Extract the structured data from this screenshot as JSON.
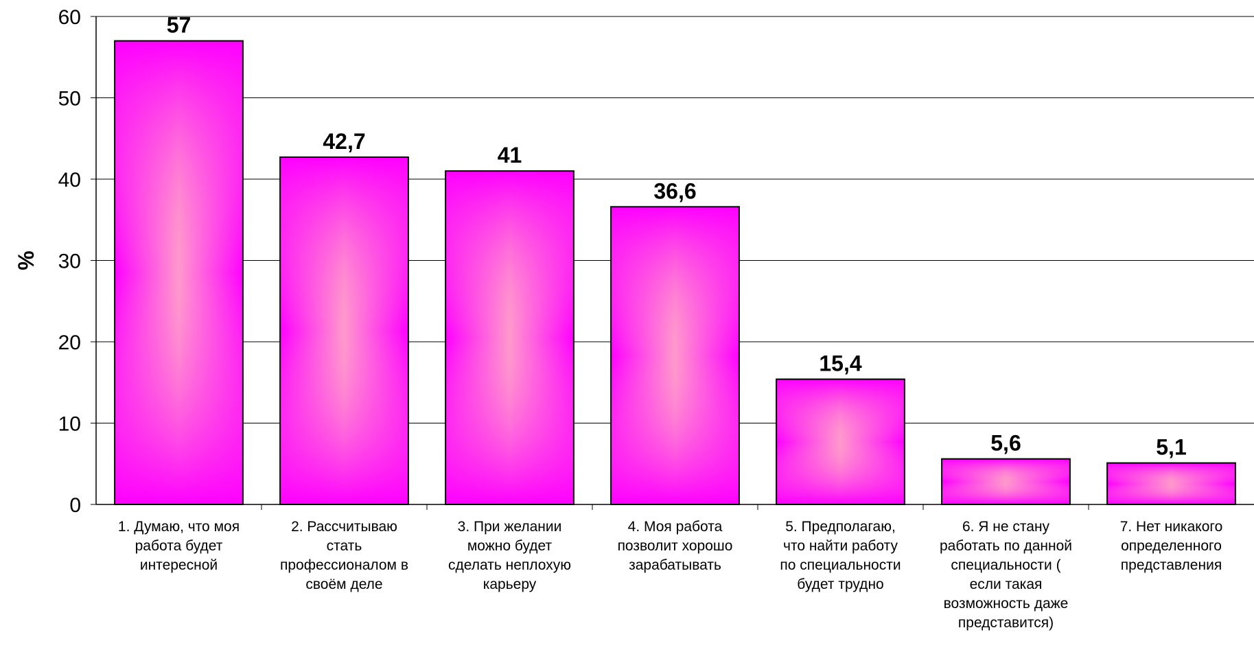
{
  "chart_data": {
    "type": "bar",
    "categories": [
      [
        "1. Думаю, что моя",
        "работа будет",
        "интересной"
      ],
      [
        "2. Рассчитываю",
        "стать",
        "профессионалом в",
        "своём деле"
      ],
      [
        "3. При желании",
        "можно будет",
        "сделать неплохую",
        "карьеру"
      ],
      [
        "4. Моя работа",
        "позволит хорошо",
        "зарабатывать"
      ],
      [
        "5. Предполагаю,",
        "что найти работу",
        "по специальности",
        "будет трудно"
      ],
      [
        "6. Я не стану",
        "работать по данной",
        "специальности (",
        "если такая",
        "возможность даже",
        "представится)"
      ],
      [
        "7. Нет никакого",
        "определенного",
        "представления"
      ]
    ],
    "values": [
      57,
      42.7,
      41,
      36.6,
      15.4,
      5.6,
      5.1
    ],
    "data_labels": [
      "57",
      "42,7",
      "41",
      "36,6",
      "15,4",
      "5,6",
      "5,1"
    ],
    "ylabel": "%",
    "ylim": [
      0,
      60
    ],
    "yticks": [
      0,
      10,
      20,
      30,
      40,
      50,
      60
    ],
    "grid": true,
    "legend": "none",
    "colors": {
      "bar_edge": "#ff00ff",
      "bar_center": "#ff99cc",
      "bar_outline": "#000000",
      "grid": "#000000",
      "axis": "#000000"
    }
  }
}
